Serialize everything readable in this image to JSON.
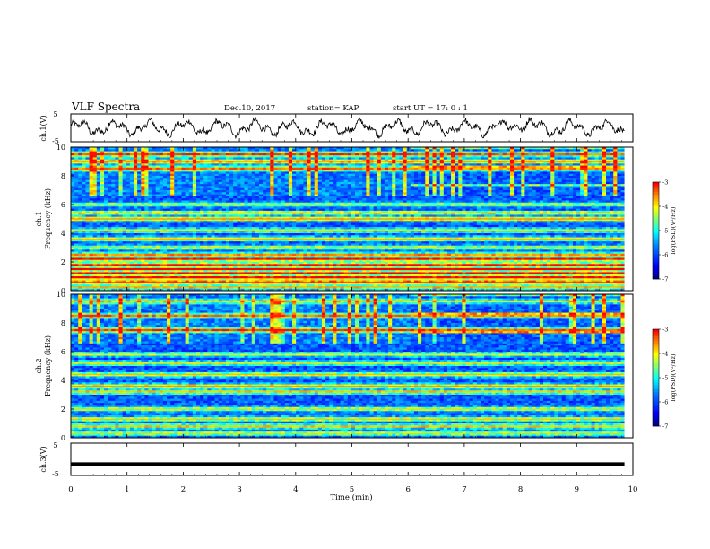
{
  "header": {
    "title": "VLF Spectra",
    "date": "Dec.10, 2017",
    "station": "station= KAP",
    "start": "start  UT =   17: 0  : 1"
  },
  "chart_data": [
    {
      "id": "ch1-waveform",
      "type": "line",
      "ylabel": "ch.1(V)",
      "ylim": [
        -5,
        5
      ],
      "y_ticks": [
        "5",
        "-5"
      ],
      "xlim": [
        0,
        10
      ],
      "x_end": 9.85,
      "color": "#000000",
      "description_values": {
        "mean": 0,
        "amplitude_range": [
          -4,
          4
        ]
      }
    },
    {
      "id": "ch1-spectrogram",
      "type": "heatmap",
      "ylabel": "ch.1\nFrequency (kHz)",
      "ylabel_lines": [
        "ch.1",
        "Frequency (kHz)"
      ],
      "ylim": [
        0,
        10
      ],
      "y_ticks": [
        "0",
        "2",
        "4",
        "6",
        "8",
        "10"
      ],
      "xlim": [
        0,
        10
      ],
      "x_end": 9.85,
      "colorbar": {
        "label": "log(PSD)(V²/Hz)",
        "range": [
          -7,
          -3
        ],
        "ticks": [
          "-3",
          "-4",
          "-5",
          "-6",
          "-7"
        ],
        "colormap": [
          "#00007f",
          "#0000ff",
          "#007fff",
          "#00ffff",
          "#7fff7f",
          "#ffff00",
          "#ff7f00",
          "#ff0000",
          "#ffffff"
        ]
      },
      "bands": [
        {
          "freq": 0.25,
          "level": 0.55
        },
        {
          "freq": 0.6,
          "level": 0.7
        },
        {
          "freq": 0.9,
          "level": 0.8
        },
        {
          "freq": 1.2,
          "level": 0.75
        },
        {
          "freq": 1.5,
          "level": 0.8
        },
        {
          "freq": 1.8,
          "level": 0.7
        },
        {
          "freq": 2.2,
          "level": 0.75
        },
        {
          "freq": 2.5,
          "level": 0.55
        },
        {
          "freq": 3.0,
          "level": 0.45
        },
        {
          "freq": 3.6,
          "level": 0.5
        },
        {
          "freq": 4.2,
          "level": 0.45
        },
        {
          "freq": 5.0,
          "level": 0.6
        },
        {
          "freq": 5.4,
          "level": 0.55
        },
        {
          "freq": 6.0,
          "level": 0.4
        },
        {
          "freq": 8.5,
          "level": 0.55
        },
        {
          "freq": 9.0,
          "level": 0.6
        },
        {
          "freq": 9.5,
          "level": 0.6
        }
      ]
    },
    {
      "id": "ch2-spectrogram",
      "type": "heatmap",
      "ylabel": "ch.2\nFrequency (kHz)",
      "ylabel_lines": [
        "ch.2",
        "Frequency (kHz)"
      ],
      "ylim": [
        0,
        10
      ],
      "y_ticks": [
        "0",
        "2",
        "4",
        "6",
        "8",
        "10"
      ],
      "xlim": [
        0,
        10
      ],
      "x_end": 9.85,
      "colorbar": {
        "label": "log(PSD)(V²/Hz)",
        "range": [
          -7,
          -3
        ],
        "ticks": [
          "-3",
          "-4",
          "-5",
          "-6",
          "-7"
        ],
        "colormap": [
          "#00007f",
          "#0000ff",
          "#007fff",
          "#00ffff",
          "#7fff7f",
          "#ffff00",
          "#ff7f00",
          "#ff0000",
          "#ffffff"
        ]
      },
      "bands": [
        {
          "freq": 0.3,
          "level": 0.45
        },
        {
          "freq": 0.8,
          "level": 0.5
        },
        {
          "freq": 1.3,
          "level": 0.5
        },
        {
          "freq": 2.0,
          "level": 0.45
        },
        {
          "freq": 3.2,
          "level": 0.5
        },
        {
          "freq": 3.6,
          "level": 0.55
        },
        {
          "freq": 4.4,
          "level": 0.5
        },
        {
          "freq": 5.2,
          "level": 0.45
        },
        {
          "freq": 5.8,
          "level": 0.4
        },
        {
          "freq": 7.5,
          "level": 0.6
        },
        {
          "freq": 8.5,
          "level": 0.55
        },
        {
          "freq": 9.5,
          "level": 0.45
        }
      ]
    },
    {
      "id": "ch3-waveform",
      "type": "line",
      "ylabel": "ch.3(V)",
      "ylim": [
        -5,
        5
      ],
      "y_ticks": [
        "5",
        "-5"
      ],
      "xlim": [
        0,
        10
      ],
      "x_end": 9.85,
      "values_constant": -1.5,
      "color": "#000000"
    }
  ],
  "x_axis": {
    "label": "Time  (min)",
    "ticks": [
      "0",
      "1",
      "2",
      "3",
      "4",
      "5",
      "6",
      "7",
      "8",
      "9",
      "10"
    ]
  }
}
